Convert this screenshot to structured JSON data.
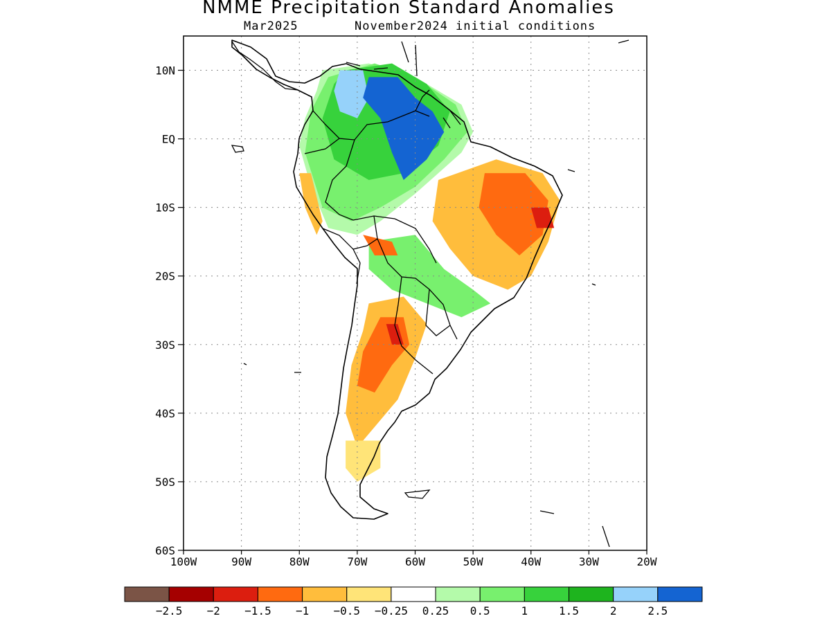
{
  "title": "NMME Precipitation Standard Anomalies",
  "subtitle_left": "Mar2025",
  "subtitle_right": "November2024 initial conditions",
  "map": {
    "lon_range": [
      -100,
      -20
    ],
    "lat_range": [
      -60,
      15
    ],
    "lat_ticks": [
      {
        "value": 10,
        "label": "10N"
      },
      {
        "value": 0,
        "label": "EQ"
      },
      {
        "value": -10,
        "label": "10S"
      },
      {
        "value": -20,
        "label": "20S"
      },
      {
        "value": -30,
        "label": "30S"
      },
      {
        "value": -40,
        "label": "40S"
      },
      {
        "value": -50,
        "label": "50S"
      },
      {
        "value": -60,
        "label": "60S"
      }
    ],
    "lon_ticks": [
      {
        "value": -100,
        "label": "100W"
      },
      {
        "value": -90,
        "label": "90W"
      },
      {
        "value": -80,
        "label": "80W"
      },
      {
        "value": -70,
        "label": "70W"
      },
      {
        "value": -60,
        "label": "60W"
      },
      {
        "value": -50,
        "label": "50W"
      },
      {
        "value": -40,
        "label": "40W"
      },
      {
        "value": -30,
        "label": "30W"
      },
      {
        "value": -20,
        "label": "20W"
      }
    ],
    "grid": "dotted"
  },
  "colorbar": {
    "colors": [
      "#7b5446",
      "#a50000",
      "#dc1e0f",
      "#ff6a10",
      "#ffbd3c",
      "#ffe478",
      "#ffffff",
      "#b4faaa",
      "#78f06e",
      "#37d23c",
      "#1eb41e",
      "#96d2fa",
      "#1464d2"
    ],
    "labels": [
      "−2.5",
      "−2",
      "−1.5",
      "−1",
      "−0.5",
      "−0.25",
      "0.25",
      "0.5",
      "1",
      "1.5",
      "2",
      "2.5"
    ]
  },
  "anomaly_regions": [
    {
      "level": "0.5",
      "color": "#b4faaa",
      "lonlat": [
        [
          -76,
          10
        ],
        [
          -68,
          11
        ],
        [
          -60,
          9
        ],
        [
          -52,
          5
        ],
        [
          -50,
          1
        ],
        [
          -52,
          -2
        ],
        [
          -56,
          -5
        ],
        [
          -60,
          -8
        ],
        [
          -66,
          -12
        ],
        [
          -70,
          -14
        ],
        [
          -75,
          -13
        ],
        [
          -78,
          -7
        ],
        [
          -80,
          -1
        ],
        [
          -79,
          3
        ],
        [
          -77,
          7
        ]
      ]
    },
    {
      "level": "1",
      "color": "#78f06e",
      "lonlat": [
        [
          -75,
          9
        ],
        [
          -67,
          11
        ],
        [
          -60,
          9
        ],
        [
          -53,
          5
        ],
        [
          -51,
          1
        ],
        [
          -55,
          -3
        ],
        [
          -60,
          -7
        ],
        [
          -66,
          -10
        ],
        [
          -71,
          -12
        ],
        [
          -76,
          -10
        ],
        [
          -79,
          -2
        ],
        [
          -78,
          4
        ]
      ]
    },
    {
      "level": "1.5",
      "color": "#37d23c",
      "lonlat": [
        [
          -72,
          10
        ],
        [
          -64,
          11
        ],
        [
          -58,
          8
        ],
        [
          -54,
          4
        ],
        [
          -56,
          -1
        ],
        [
          -62,
          -5
        ],
        [
          -68,
          -6
        ],
        [
          -74,
          -3
        ],
        [
          -76,
          3
        ],
        [
          -74,
          8
        ]
      ]
    },
    {
      "level": "2",
      "color": "#96d2fa",
      "lonlat": [
        [
          -73,
          10
        ],
        [
          -69,
          10
        ],
        [
          -68,
          6
        ],
        [
          -70,
          3
        ],
        [
          -73,
          4
        ],
        [
          -74,
          7
        ]
      ]
    },
    {
      "level": "2.5",
      "color": "#1464d2",
      "lonlat": [
        [
          -68,
          9
        ],
        [
          -63,
          9
        ],
        [
          -60,
          6
        ],
        [
          -57,
          4
        ],
        [
          -55,
          1
        ],
        [
          -58,
          -3
        ],
        [
          -62,
          -6
        ],
        [
          -64,
          -2
        ],
        [
          -66,
          3
        ],
        [
          -69,
          6
        ]
      ]
    },
    {
      "level": "1",
      "color": "#78f06e",
      "lonlat": [
        [
          -68,
          -15
        ],
        [
          -60,
          -14
        ],
        [
          -55,
          -19
        ],
        [
          -50,
          -22
        ],
        [
          -47,
          -24
        ],
        [
          -52,
          -26
        ],
        [
          -58,
          -24
        ],
        [
          -64,
          -22
        ],
        [
          -68,
          -19
        ]
      ]
    },
    {
      "level": "-0.5",
      "color": "#ffbd3c",
      "lonlat": [
        [
          -56,
          -6
        ],
        [
          -46,
          -3
        ],
        [
          -38,
          -5
        ],
        [
          -35,
          -9
        ],
        [
          -37,
          -15
        ],
        [
          -40,
          -20
        ],
        [
          -44,
          -22
        ],
        [
          -50,
          -20
        ],
        [
          -54,
          -16
        ],
        [
          -57,
          -12
        ]
      ]
    },
    {
      "level": "-1",
      "color": "#ff6a10",
      "lonlat": [
        [
          -48,
          -5
        ],
        [
          -41,
          -5
        ],
        [
          -37,
          -9
        ],
        [
          -38,
          -14
        ],
        [
          -42,
          -17
        ],
        [
          -46,
          -14
        ],
        [
          -49,
          -10
        ]
      ]
    },
    {
      "level": "-1.5",
      "color": "#dc1e0f",
      "lonlat": [
        [
          -40,
          -10
        ],
        [
          -37,
          -10
        ],
        [
          -36,
          -13
        ],
        [
          -39,
          -13
        ]
      ]
    },
    {
      "level": "-0.5",
      "color": "#ffbd3c",
      "lonlat": [
        [
          -68,
          -24
        ],
        [
          -62,
          -23
        ],
        [
          -58,
          -27
        ],
        [
          -60,
          -32
        ],
        [
          -63,
          -38
        ],
        [
          -67,
          -42
        ],
        [
          -70,
          -45
        ],
        [
          -72,
          -40
        ],
        [
          -71,
          -33
        ],
        [
          -69,
          -28
        ]
      ]
    },
    {
      "level": "-1",
      "color": "#ff6a10",
      "lonlat": [
        [
          -66,
          -26
        ],
        [
          -62,
          -26
        ],
        [
          -61,
          -30
        ],
        [
          -64,
          -33
        ],
        [
          -67,
          -37
        ],
        [
          -70,
          -36
        ],
        [
          -69,
          -31
        ]
      ]
    },
    {
      "level": "-1.5",
      "color": "#dc1e0f",
      "lonlat": [
        [
          -65,
          -27
        ],
        [
          -63,
          -27
        ],
        [
          -62,
          -30
        ],
        [
          -64,
          -30
        ]
      ]
    },
    {
      "level": "-0.25",
      "color": "#ffe478",
      "lonlat": [
        [
          -72,
          -44
        ],
        [
          -66,
          -44
        ],
        [
          -66,
          -48
        ],
        [
          -70,
          -50
        ],
        [
          -72,
          -48
        ]
      ]
    },
    {
      "level": "-0.5",
      "color": "#ffbd3c",
      "lonlat": [
        [
          -80,
          -5
        ],
        [
          -78,
          -5
        ],
        [
          -76,
          -12
        ],
        [
          -77,
          -14
        ],
        [
          -79,
          -10
        ]
      ]
    },
    {
      "level": "-1",
      "color": "#ff6a10",
      "lonlat": [
        [
          -69,
          -14
        ],
        [
          -64,
          -15
        ],
        [
          -63,
          -17
        ],
        [
          -67,
          -17
        ]
      ]
    }
  ]
}
